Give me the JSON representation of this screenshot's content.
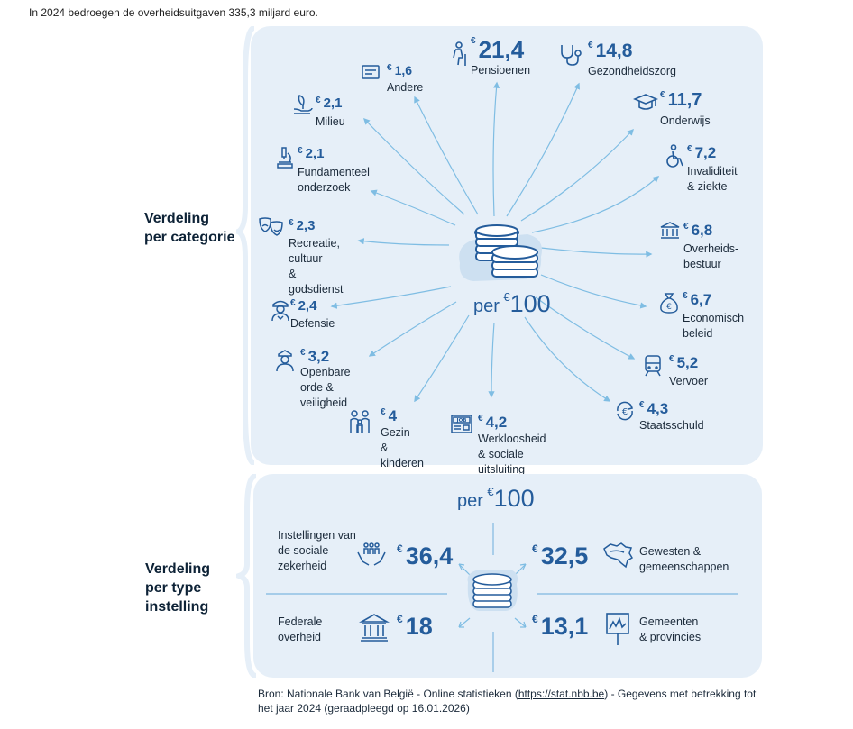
{
  "intro_text": "In 2024 bedroegen de overheidsuitgaven 335,3 miljard euro.",
  "currency_symbol": "€",
  "colors": {
    "accent": "#245c9b",
    "panel": "#e6eff8",
    "arrow": "#7fbde3"
  },
  "section1": {
    "title_line1": "Verdeling",
    "title_line2": "per categorie"
  },
  "section2": {
    "title_line1": "Verdeling",
    "title_line2": "per type",
    "title_line3": "instelling"
  },
  "center1": {
    "per": "per",
    "amount": "100"
  },
  "center2": {
    "per": "per",
    "amount": "100"
  },
  "categories": [
    {
      "value": "21,4",
      "label": "Pensioenen",
      "icon": "elderly-icon"
    },
    {
      "value": "14,8",
      "label": "Gezondheidszorg",
      "icon": "stethoscope-icon"
    },
    {
      "value": "11,7",
      "label": "Onderwijs",
      "icon": "graduation-cap-icon"
    },
    {
      "value": "7,2",
      "label": "Invaliditeit\n& ziekte",
      "icon": "wheelchair-icon"
    },
    {
      "value": "6,8",
      "label": "Overheids-\nbestuur",
      "icon": "government-building-icon"
    },
    {
      "value": "6,7",
      "label": "Economisch\nbeleid",
      "icon": "money-bag-icon"
    },
    {
      "value": "5,2",
      "label": "Vervoer",
      "icon": "train-icon"
    },
    {
      "value": "4,3",
      "label": "Staatsschuld",
      "icon": "euro-cycle-icon"
    },
    {
      "value": "4,2",
      "label": "Werkloosheid & sociale\nuitsluiting",
      "icon": "job-newspaper-icon"
    },
    {
      "value": "4",
      "label": "Gezin\n& kinderen",
      "icon": "family-icon"
    },
    {
      "value": "3,2",
      "label": "Openbare\norde & veiligheid",
      "icon": "police-officer-icon"
    },
    {
      "value": "2,4",
      "label": "Defensie",
      "icon": "soldier-icon"
    },
    {
      "value": "2,3",
      "label": "Recreatie,\ncultuur\n& godsdienst",
      "icon": "theater-masks-icon"
    },
    {
      "value": "2,1",
      "label": "Fundamenteel\nonderzoek",
      "icon": "microscope-icon"
    },
    {
      "value": "2,1",
      "label": "Milieu",
      "icon": "plant-hand-icon"
    },
    {
      "value": "1,6",
      "label": "Andere",
      "icon": "card-icon"
    }
  ],
  "institutions": [
    {
      "value": "36,4",
      "label": "Instellingen van\nde sociale\nzekerheid",
      "icon": "people-hands-icon"
    },
    {
      "value": "32,5",
      "label": "Gewesten &\ngemeenschappen",
      "icon": "belgium-map-icon"
    },
    {
      "value": "18",
      "label": "Federale\noverheid",
      "icon": "federal-building-icon"
    },
    {
      "value": "13,1",
      "label": "Gemeenten\n& provincies",
      "icon": "signboard-icon"
    }
  ],
  "source": {
    "prefix": "Bron: Nationale Bank van België - Online statistieken (",
    "link_text": "https://stat.nbb.be",
    "suffix": ") - Gegevens met betrekking tot het jaar 2024 (geraadpleegd op 16.01.2026)"
  },
  "chart_data": [
    {
      "type": "pie",
      "title": "Verdeling per categorie",
      "unit": "€ per €100",
      "categories": [
        "Pensioenen",
        "Gezondheidszorg",
        "Onderwijs",
        "Invaliditeit & ziekte",
        "Overheidsbestuur",
        "Economisch beleid",
        "Vervoer",
        "Staatsschuld",
        "Werkloosheid & sociale uitsluiting",
        "Gezin & kinderen",
        "Openbare orde & veiligheid",
        "Defensie",
        "Recreatie, cultuur & godsdienst",
        "Fundamenteel onderzoek",
        "Milieu",
        "Andere"
      ],
      "values": [
        21.4,
        14.8,
        11.7,
        7.2,
        6.8,
        6.7,
        5.2,
        4.3,
        4.2,
        4,
        3.2,
        2.4,
        2.3,
        2.1,
        2.1,
        1.6
      ]
    },
    {
      "type": "pie",
      "title": "Verdeling per type instelling",
      "unit": "€ per €100",
      "categories": [
        "Instellingen van de sociale zekerheid",
        "Gewesten & gemeenschappen",
        "Federale overheid",
        "Gemeenten & provincies"
      ],
      "values": [
        36.4,
        32.5,
        18,
        13.1
      ]
    }
  ]
}
